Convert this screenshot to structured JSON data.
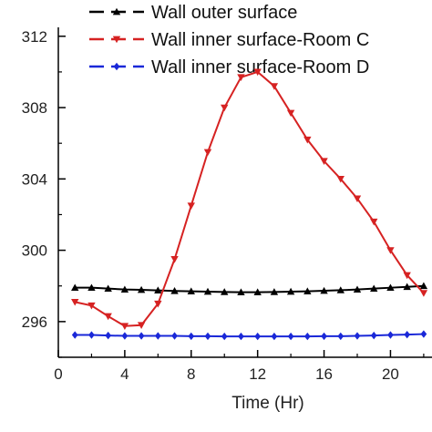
{
  "chart_data": {
    "type": "line",
    "title": "",
    "xlabel": "Time (Hr)",
    "ylabel": "",
    "xlim": [
      0,
      22.5
    ],
    "ylim": [
      294,
      312.5
    ],
    "x_ticks": [
      0,
      4,
      8,
      12,
      16,
      20
    ],
    "y_ticks": [
      296,
      300,
      304,
      308,
      312
    ],
    "legend_position": "top",
    "grid": false,
    "x": [
      1,
      2,
      3,
      4,
      5,
      6,
      7,
      8,
      9,
      10,
      11,
      12,
      13,
      14,
      15,
      16,
      17,
      18,
      19,
      20,
      21,
      22
    ],
    "series": [
      {
        "name": "Wall outer surface",
        "color": "#000000",
        "marker": "triangle-up",
        "values": [
          297.9,
          297.9,
          297.85,
          297.8,
          297.78,
          297.75,
          297.72,
          297.7,
          297.68,
          297.66,
          297.65,
          297.65,
          297.66,
          297.68,
          297.7,
          297.73,
          297.76,
          297.8,
          297.85,
          297.9,
          297.95,
          298.0
        ]
      },
      {
        "name": "Wall inner surface-Room C",
        "color": "#d62222",
        "marker": "triangle-down",
        "values": [
          297.1,
          296.9,
          296.3,
          295.75,
          295.8,
          297.0,
          299.5,
          302.5,
          305.5,
          308.0,
          309.7,
          310.0,
          309.2,
          307.7,
          306.2,
          305.0,
          304.0,
          302.9,
          301.6,
          300.0,
          298.6,
          297.6
        ]
      },
      {
        "name": "Wall inner surface-Room D",
        "color": "#1a28d8",
        "marker": "diamond",
        "values": [
          295.25,
          295.25,
          295.22,
          295.2,
          295.2,
          295.2,
          295.2,
          295.18,
          295.18,
          295.17,
          295.17,
          295.17,
          295.17,
          295.17,
          295.17,
          295.18,
          295.18,
          295.2,
          295.22,
          295.25,
          295.27,
          295.3
        ]
      }
    ]
  }
}
